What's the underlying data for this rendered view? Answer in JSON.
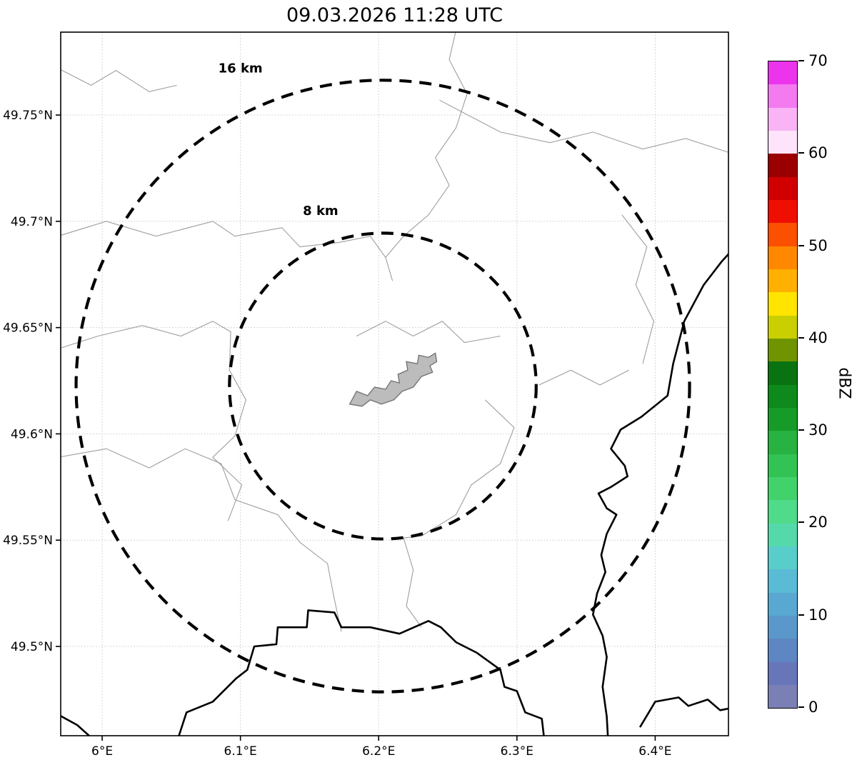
{
  "title": "09.03.2026 11:28 UTC",
  "chart_data": {
    "type": "map",
    "subtype": "weather-radar-range-ring-map",
    "title": "09.03.2026 11:28 UTC",
    "x_axis": {
      "range": [
        5.97,
        6.453
      ],
      "tick_values": [
        6.0,
        6.1,
        6.2,
        6.3,
        6.4
      ],
      "tick_labels": [
        "6°E",
        "6.1°E",
        "6.2°E",
        "6.3°E",
        "6.4°E"
      ]
    },
    "y_axis": {
      "range": [
        49.458,
        49.789
      ],
      "tick_values": [
        49.75,
        49.7,
        49.65,
        49.6,
        49.55,
        49.5
      ],
      "tick_labels": [
        "49.75°N",
        "49.7°N",
        "49.65°N",
        "49.6°N",
        "49.55°N",
        "49.5°N"
      ]
    },
    "grid": {
      "visible": true,
      "color": "#c8c8c8",
      "style": "dotted"
    },
    "radar_site": {
      "lon": 6.203,
      "lat": 49.6225
    },
    "range_rings": [
      {
        "radius_km": 8,
        "label": "8 km",
        "label_lon": 6.158,
        "label_lat": 49.703
      },
      {
        "radius_km": 16,
        "label": "16 km",
        "label_lon": 6.1,
        "label_lat": 49.77
      }
    ],
    "ring_style": {
      "color": "#000000",
      "dash": "dashed"
    },
    "reflectivity_echoes": [],
    "colorbar": {
      "label": "dBZ",
      "vmin": 0,
      "vmax": 70,
      "tick_values": [
        0,
        10,
        20,
        30,
        40,
        50,
        60,
        70
      ],
      "tick_labels": [
        "0",
        "10",
        "20",
        "30",
        "40",
        "50",
        "60",
        "70"
      ],
      "segment_step_dbz": 2.5,
      "colors_bottom_to_top": [
        "#7a80b5",
        "#6776b8",
        "#5e86c2",
        "#5a97ca",
        "#58a8d1",
        "#5abbd6",
        "#59cdc9",
        "#55d9ab",
        "#4fdb8a",
        "#42d26c",
        "#33c254",
        "#27b241",
        "#169a28",
        "#0d8a1b",
        "#0a7311",
        "#6f9400",
        "#c9cf00",
        "#ffe400",
        "#ffb000",
        "#ff8800",
        "#fb5000",
        "#ef0f00",
        "#d00000",
        "#9a0000",
        "#fde4fb",
        "#fab4f6",
        "#f47af0",
        "#ec34ec"
      ]
    },
    "geography": {
      "urban_area": [
        [
          6.179,
          49.614
        ],
        [
          6.184,
          49.62
        ],
        [
          6.192,
          49.618
        ],
        [
          6.197,
          49.622
        ],
        [
          6.205,
          49.621
        ],
        [
          6.209,
          49.625
        ],
        [
          6.215,
          49.624
        ],
        [
          6.214,
          49.628
        ],
        [
          6.221,
          49.63
        ],
        [
          6.22,
          49.634
        ],
        [
          6.228,
          49.633
        ],
        [
          6.229,
          49.637
        ],
        [
          6.236,
          49.636
        ],
        [
          6.241,
          49.638
        ],
        [
          6.242,
          49.634
        ],
        [
          6.237,
          49.632
        ],
        [
          6.239,
          49.629
        ],
        [
          6.231,
          49.627
        ],
        [
          6.225,
          49.622
        ],
        [
          6.217,
          49.62
        ],
        [
          6.211,
          49.616
        ],
        [
          6.202,
          49.614
        ],
        [
          6.194,
          49.616
        ],
        [
          6.188,
          49.613
        ]
      ],
      "country_borders": [
        [
          [
            6.455,
            49.686
          ],
          [
            6.448,
            49.681
          ],
          [
            6.435,
            49.67
          ],
          [
            6.421,
            49.653
          ],
          [
            6.413,
            49.633
          ],
          [
            6.409,
            49.618
          ],
          [
            6.39,
            49.608
          ],
          [
            6.375,
            49.602
          ],
          [
            6.368,
            49.593
          ],
          [
            6.378,
            49.585
          ],
          [
            6.38,
            49.58
          ],
          [
            6.368,
            49.575
          ],
          [
            6.359,
            49.572
          ],
          [
            6.365,
            49.565
          ],
          [
            6.372,
            49.562
          ],
          [
            6.365,
            49.553
          ],
          [
            6.361,
            49.543
          ],
          [
            6.364,
            49.535
          ],
          [
            6.358,
            49.525
          ],
          [
            6.355,
            49.515
          ],
          [
            6.362,
            49.505
          ],
          [
            6.365,
            49.495
          ],
          [
            6.362,
            49.481
          ],
          [
            6.365,
            49.467
          ],
          [
            6.366,
            49.455
          ]
        ],
        [
          [
            6.054,
            49.455
          ],
          [
            6.061,
            49.469
          ],
          [
            6.08,
            49.474
          ],
          [
            6.097,
            49.485
          ],
          [
            6.105,
            49.489
          ],
          [
            6.11,
            49.5
          ],
          [
            6.126,
            49.501
          ],
          [
            6.127,
            49.509
          ],
          [
            6.148,
            49.509
          ],
          [
            6.149,
            49.517
          ],
          [
            6.168,
            49.516
          ],
          [
            6.173,
            49.509
          ],
          [
            6.194,
            49.509
          ],
          [
            6.215,
            49.506
          ],
          [
            6.236,
            49.512
          ],
          [
            6.245,
            49.509
          ],
          [
            6.256,
            49.502
          ],
          [
            6.271,
            49.497
          ],
          [
            6.288,
            49.489
          ],
          [
            6.291,
            49.481
          ],
          [
            6.3,
            49.479
          ],
          [
            6.306,
            49.469
          ],
          [
            6.318,
            49.466
          ],
          [
            6.32,
            49.455
          ]
        ],
        [
          [
            6.389,
            49.462
          ],
          [
            6.4,
            49.474
          ],
          [
            6.417,
            49.476
          ],
          [
            6.424,
            49.472
          ],
          [
            6.438,
            49.475
          ],
          [
            6.447,
            49.47
          ],
          [
            6.455,
            49.471
          ]
        ],
        [
          [
            5.968,
            49.468
          ],
          [
            5.982,
            49.463
          ],
          [
            5.994,
            49.456
          ]
        ]
      ],
      "municipal_borders": [
        [
          [
            5.968,
            49.772
          ],
          [
            5.992,
            49.764
          ],
          [
            6.01,
            49.771
          ],
          [
            6.034,
            49.761
          ],
          [
            6.054,
            49.764
          ]
        ],
        [
          [
            6.256,
            49.79
          ],
          [
            6.251,
            49.776
          ],
          [
            6.264,
            49.76
          ],
          [
            6.256,
            49.744
          ],
          [
            6.241,
            49.73
          ],
          [
            6.251,
            49.717
          ],
          [
            6.236,
            49.703
          ],
          [
            6.218,
            49.693
          ],
          [
            6.205,
            49.683
          ],
          [
            6.21,
            49.672
          ]
        ],
        [
          [
            5.968,
            49.693
          ],
          [
            6.003,
            49.7
          ],
          [
            6.039,
            49.693
          ],
          [
            6.08,
            49.7
          ],
          [
            6.096,
            49.693
          ],
          [
            6.13,
            49.697
          ],
          [
            6.143,
            49.688
          ],
          [
            6.171,
            49.69
          ],
          [
            6.194,
            49.693
          ],
          [
            6.205,
            49.683
          ]
        ],
        [
          [
            6.244,
            49.757
          ],
          [
            6.288,
            49.742
          ],
          [
            6.324,
            49.737
          ],
          [
            6.355,
            49.742
          ],
          [
            6.391,
            49.734
          ],
          [
            6.422,
            49.739
          ],
          [
            6.455,
            49.732
          ]
        ],
        [
          [
            5.968,
            49.64
          ],
          [
            5.997,
            49.646
          ],
          [
            6.029,
            49.651
          ],
          [
            6.057,
            49.646
          ],
          [
            6.08,
            49.653
          ],
          [
            6.093,
            49.648
          ],
          [
            6.092,
            49.63
          ],
          [
            6.104,
            49.616
          ],
          [
            6.096,
            49.599
          ],
          [
            6.08,
            49.589
          ],
          [
            6.101,
            49.576
          ],
          [
            6.091,
            49.559
          ]
        ],
        [
          [
            5.968,
            49.589
          ],
          [
            6.003,
            49.593
          ],
          [
            6.034,
            49.584
          ],
          [
            6.06,
            49.593
          ],
          [
            6.086,
            49.586
          ],
          [
            6.096,
            49.569
          ],
          [
            6.127,
            49.562
          ],
          [
            6.143,
            49.549
          ],
          [
            6.163,
            49.539
          ],
          [
            6.168,
            49.522
          ],
          [
            6.173,
            49.507
          ]
        ],
        [
          [
            6.218,
            49.551
          ],
          [
            6.225,
            49.536
          ],
          [
            6.22,
            49.519
          ],
          [
            6.231,
            49.509
          ]
        ],
        [
          [
            6.277,
            49.616
          ],
          [
            6.298,
            49.603
          ],
          [
            6.288,
            49.586
          ],
          [
            6.267,
            49.576
          ],
          [
            6.256,
            49.562
          ],
          [
            6.231,
            49.552
          ],
          [
            6.218,
            49.551
          ]
        ],
        [
          [
            6.376,
            49.703
          ],
          [
            6.394,
            49.688
          ],
          [
            6.386,
            49.67
          ],
          [
            6.399,
            49.653
          ],
          [
            6.391,
            49.633
          ]
        ],
        [
          [
            6.184,
            49.646
          ],
          [
            6.205,
            49.653
          ],
          [
            6.225,
            49.646
          ],
          [
            6.246,
            49.653
          ],
          [
            6.262,
            49.643
          ],
          [
            6.288,
            49.646
          ]
        ],
        [
          [
            6.316,
            49.623
          ],
          [
            6.339,
            49.63
          ],
          [
            6.36,
            49.623
          ],
          [
            6.381,
            49.63
          ]
        ]
      ]
    }
  }
}
